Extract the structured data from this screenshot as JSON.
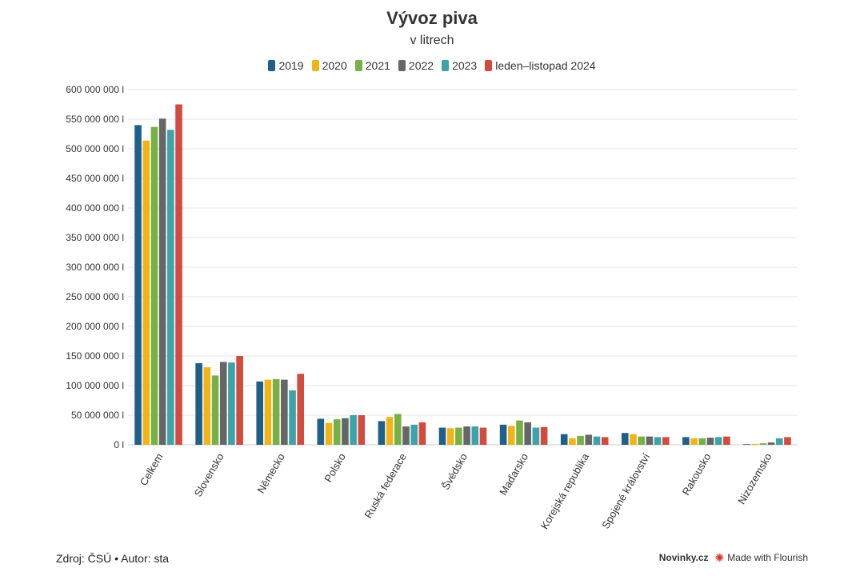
{
  "chart_data": {
    "type": "bar",
    "title": "Vývoz piva",
    "subtitle": "v litrech",
    "ylim": [
      0,
      600000000
    ],
    "y_ticks": [
      "0 l",
      "50 000 000 l",
      "100 000 000 l",
      "150 000 000 l",
      "200 000 000 l",
      "250 000 000 l",
      "300 000 000 l",
      "350 000 000 l",
      "400 000 000 l",
      "450 000 000 l",
      "500 000 000 l",
      "550 000 000 l",
      "600 000 000 l"
    ],
    "categories": [
      "Celkem",
      "Slovensko",
      "Německo",
      "Polsko",
      "Ruská federace",
      "Švédsko",
      "Maďarsko",
      "Korejská republika",
      "Spojené království",
      "Rakousko",
      "Nizozemsko"
    ],
    "series": [
      {
        "name": "2019",
        "color": "#1f5f8b",
        "values": [
          540000000,
          138000000,
          107000000,
          44000000,
          40000000,
          29000000,
          34000000,
          18000000,
          20000000,
          13000000,
          1000000
        ]
      },
      {
        "name": "2020",
        "color": "#f0b41a",
        "values": [
          514000000,
          131000000,
          110000000,
          37000000,
          47000000,
          28000000,
          32000000,
          11000000,
          18000000,
          11000000,
          1500000
        ]
      },
      {
        "name": "2021",
        "color": "#77b045",
        "values": [
          537000000,
          117000000,
          111000000,
          43000000,
          52000000,
          29000000,
          41000000,
          15000000,
          14000000,
          11000000,
          2500000
        ]
      },
      {
        "name": "2022",
        "color": "#666666",
        "values": [
          551000000,
          140000000,
          110000000,
          45000000,
          31000000,
          31000000,
          38000000,
          17000000,
          14000000,
          12000000,
          4000000
        ]
      },
      {
        "name": "2023",
        "color": "#3ba3a9",
        "values": [
          532000000,
          139000000,
          92000000,
          50000000,
          34000000,
          31000000,
          29000000,
          14000000,
          13000000,
          13000000,
          11000000
        ]
      },
      {
        "name": "leden–listopad 2024",
        "color": "#d14b3f",
        "values": [
          575000000,
          150000000,
          120000000,
          50000000,
          38000000,
          29000000,
          30000000,
          13000000,
          13000000,
          14000000,
          13000000
        ]
      }
    ]
  },
  "footer": {
    "source": "Zdroj: ČSÚ • Autor: sta",
    "brand": "Novinky.cz",
    "flourish": "Made with Flourish"
  }
}
